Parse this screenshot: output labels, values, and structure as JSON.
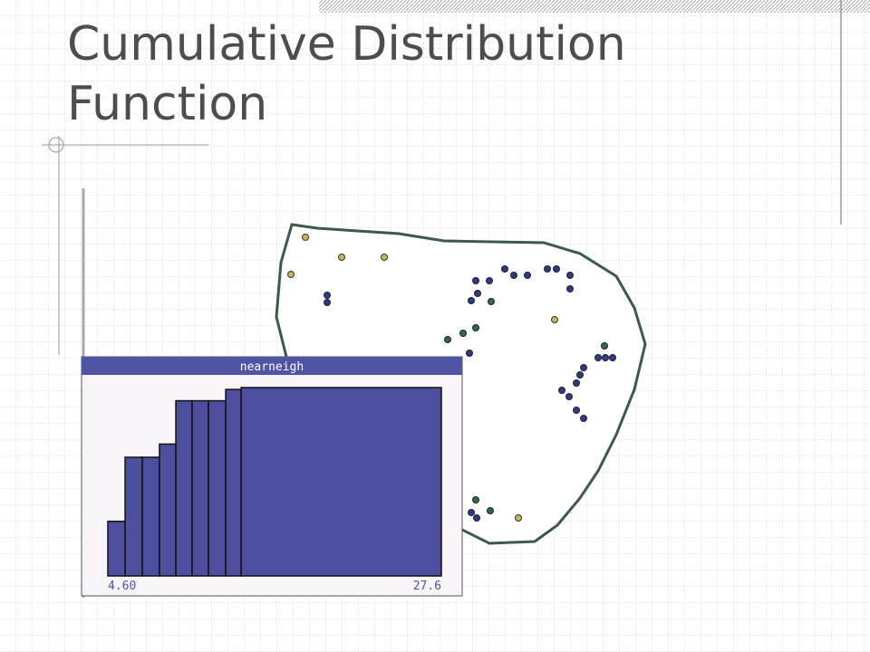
{
  "slide_title": "Cumulative Distribution Function",
  "chart_data": {
    "type": "histogram",
    "title": "nearneigh",
    "bins": [
      4.6,
      5.79,
      6.98,
      8.16,
      9.29,
      10.41,
      11.54,
      12.73,
      13.79,
      27.6
    ],
    "values": [
      0.29,
      0.63,
      0.63,
      0.7,
      0.93,
      0.93,
      0.93,
      0.99,
      1.0
    ],
    "color": "#4c4f9e",
    "xlim": [
      4.6,
      27.6
    ],
    "xticks": [
      {
        "value": 4.6,
        "label": "4.60"
      },
      {
        "value": 27.6,
        "label": "27.6"
      }
    ],
    "ylim": [
      0,
      1
    ]
  }
}
